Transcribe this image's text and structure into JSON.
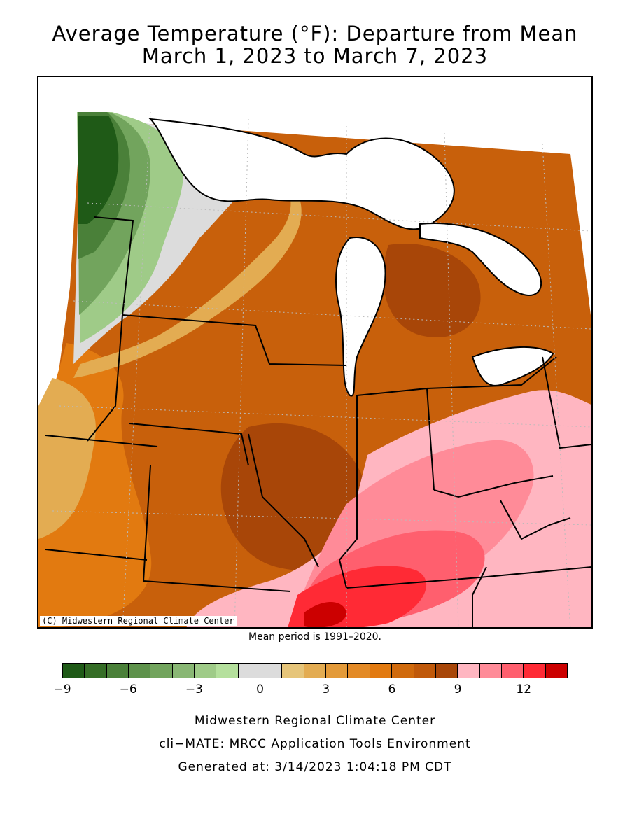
{
  "title_line1": "Average Temperature (°F): Departure from Mean",
  "title_line2": "March 1, 2023 to March 7, 2023",
  "map_credit": "(C) Midwestern Regional Climate Center",
  "mean_period": "Mean period is 1991–2020.",
  "legend": {
    "colors": [
      "#1f5a17",
      "#356d26",
      "#4a8039",
      "#5e924b",
      "#72a45d",
      "#89b774",
      "#9fcb88",
      "#b5e09d",
      "#dcdcdc",
      "#dcdcdc",
      "#e6c57a",
      "#e3ac52",
      "#e39a39",
      "#e38a26",
      "#e27a10",
      "#d06a0c",
      "#c0590a",
      "#a84608",
      "#ffb6c1",
      "#ff8b98",
      "#ff5f6e",
      "#ff2a35",
      "#cc0000"
    ],
    "ticks": [
      "−9",
      "−6",
      "−3",
      "0",
      "3",
      "6",
      "9",
      "12"
    ]
  },
  "footer": {
    "line1": "Midwestern Regional Climate Center",
    "line2": "cli−MATE: MRCC Application Tools Environment",
    "line3": "Generated at: 3/14/2023 1:04:18 PM CDT"
  }
}
